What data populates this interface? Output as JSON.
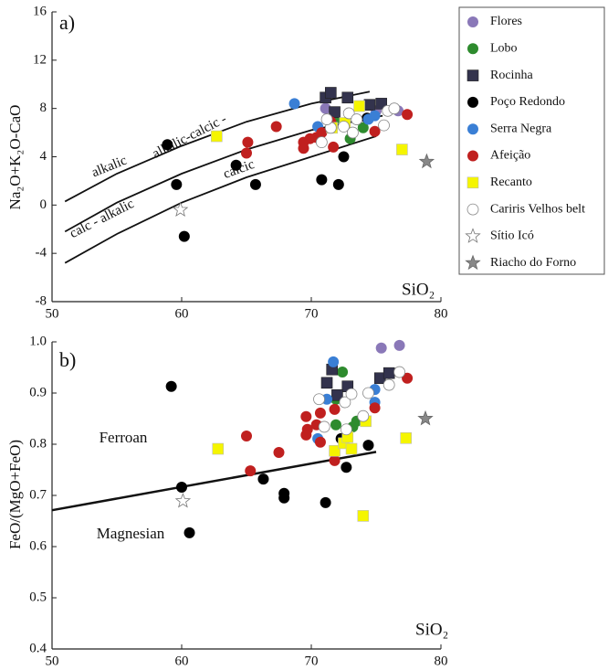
{
  "chart_data": [
    {
      "type": "scatter",
      "title": "a)",
      "xlabel": "SiO₂",
      "ylabel": "Na₂O+K₂O-CaO",
      "xlim": [
        50,
        80
      ],
      "xticks": [
        50,
        60,
        70,
        80
      ],
      "ylim": [
        -8,
        16
      ],
      "yticks": [
        -8,
        -4,
        0,
        4,
        8,
        12,
        16
      ],
      "curves": [
        {
          "x": [
            51,
            55,
            60,
            65,
            70,
            74.5
          ],
          "y": [
            0.3,
            2.6,
            4.9,
            6.9,
            8.4,
            9.4
          ]
        },
        {
          "x": [
            51,
            55,
            60,
            65,
            70,
            75.5
          ],
          "y": [
            -2.2,
            0.2,
            2.6,
            4.6,
            6.2,
            7.4
          ]
        },
        {
          "x": [
            51,
            55,
            60,
            65,
            70,
            75
          ],
          "y": [
            -4.8,
            -2.4,
            0.2,
            2.3,
            4.0,
            5.7
          ]
        }
      ],
      "annotations": [
        "alkalic",
        "alkalic-calcic -",
        "calc - alkalic",
        "calcic"
      ],
      "series": [
        {
          "name": "Flores",
          "color": "#8a78b8",
          "marker": "circle",
          "x": [
            71.1,
            75.0,
            76.7
          ],
          "y": [
            8.0,
            7.8,
            7.8
          ]
        },
        {
          "name": "Lobo",
          "color": "#2e8b2e",
          "marker": "circle",
          "x": [
            71.8,
            73.0,
            74.0,
            72.5
          ],
          "y": [
            7.1,
            5.5,
            6.4,
            6.5
          ]
        },
        {
          "name": "Rocinha",
          "color": "#33334d",
          "marker": "square",
          "x": [
            71.1,
            71.5,
            72.8,
            74.5,
            75.4,
            71.8
          ],
          "y": [
            8.9,
            9.3,
            8.9,
            8.3,
            8.4,
            7.7
          ]
        },
        {
          "name": "Poço Redondo",
          "color": "#000000",
          "marker": "circle",
          "x": [
            58.9,
            59.6,
            60.2,
            64.2,
            65.7,
            70.8,
            72.1,
            72.5,
            74.3
          ],
          "y": [
            5.0,
            1.7,
            -2.6,
            3.3,
            1.7,
            2.1,
            1.7,
            4.0,
            7.2
          ]
        },
        {
          "name": "Serra Negra",
          "color": "#3a7fd5",
          "marker": "circle",
          "x": [
            68.7,
            70.5,
            74.4,
            74.9
          ],
          "y": [
            8.4,
            6.5,
            7.1,
            7.4
          ]
        },
        {
          "name": "Afeição",
          "color": "#c0201f",
          "marker": "circle",
          "x": [
            65.0,
            65.1,
            67.3,
            69.4,
            69.4,
            69.9,
            70.4,
            71.5,
            71.7,
            74.9,
            77.4,
            70.8
          ],
          "y": [
            4.3,
            5.2,
            6.5,
            5.2,
            4.7,
            5.5,
            5.6,
            6.9,
            4.8,
            6.1,
            7.5,
            6.0
          ]
        },
        {
          "name": "Recanto",
          "color": "#f5f500",
          "marker": "square",
          "x": [
            62.7,
            71.6,
            73.7,
            77.0,
            72.6
          ],
          "y": [
            5.7,
            6.4,
            8.2,
            4.6,
            6.8
          ]
        },
        {
          "name": "Cariris Velhos belt",
          "color": "#ffffff",
          "marker": "circle",
          "x": [
            70.8,
            71.5,
            72.5,
            72.9,
            73.5,
            75.6,
            75.9,
            76.4,
            73.2,
            71.2
          ],
          "y": [
            5.2,
            6.4,
            6.5,
            7.6,
            7.1,
            6.6,
            7.8,
            8.0,
            6.0,
            7.1
          ]
        },
        {
          "name": "Sítio Icó",
          "color": "#ffffff",
          "marker": "star",
          "x": [
            59.9
          ],
          "y": [
            -0.4
          ]
        },
        {
          "name": "Riacho do Forno",
          "color": "#888888",
          "marker": "star",
          "x": [
            78.9
          ],
          "y": [
            3.6
          ]
        }
      ]
    },
    {
      "type": "scatter",
      "title": "b)",
      "xlabel": "SiO₂",
      "ylabel": "FeO/(MgO+FeO)",
      "xlim": [
        50,
        80
      ],
      "xticks": [
        50,
        60,
        70,
        80
      ],
      "ylim": [
        0.4,
        1.0
      ],
      "yticks": [
        0.4,
        0.5,
        0.6,
        0.7,
        0.8,
        0.9,
        {
          "value": 1,
          "label": "1.0"
        }
      ],
      "curves": [
        {
          "x": [
            50,
            75
          ],
          "y": [
            0.671,
            0.785
          ]
        }
      ],
      "annotations": [
        "Ferroan",
        "Magnesian"
      ],
      "series": [
        {
          "color": "#8a78b8",
          "marker": "circle",
          "x": [
            75.4,
            76.8
          ],
          "y": [
            0.988,
            0.993
          ]
        },
        {
          "color": "#2e8b2e",
          "marker": "circle",
          "x": [
            72.4,
            71.9,
            73.2,
            71.9,
            73.5
          ],
          "y": [
            0.941,
            0.888,
            0.834,
            0.838,
            0.845
          ]
        },
        {
          "color": "#33334d",
          "marker": "square",
          "x": [
            71.2,
            71.6,
            72.8,
            72.0,
            75.3,
            76.0
          ],
          "y": [
            0.92,
            0.946,
            0.913,
            0.896,
            0.929,
            0.939
          ]
        },
        {
          "color": "#000000",
          "marker": "circle",
          "x": [
            59.2,
            60.0,
            60.6,
            66.3,
            67.9,
            67.9,
            71.1,
            72.3,
            72.7,
            74.4
          ],
          "y": [
            0.913,
            0.716,
            0.627,
            0.732,
            0.704,
            0.695,
            0.686,
            0.811,
            0.755,
            0.798
          ]
        },
        {
          "color": "#3a7fd5",
          "marker": "circle",
          "x": [
            71.7,
            71.2,
            70.5,
            74.9,
            74.9
          ],
          "y": [
            0.961,
            0.888,
            0.811,
            0.907,
            0.882
          ]
        },
        {
          "color": "#c0201f",
          "marker": "circle",
          "x": [
            65.0,
            65.3,
            67.5,
            69.7,
            69.6,
            70.4,
            70.7,
            69.6,
            71.8,
            71.8,
            74.9,
            77.4,
            70.7
          ],
          "y": [
            0.816,
            0.748,
            0.784,
            0.829,
            0.854,
            0.838,
            0.861,
            0.818,
            0.868,
            0.768,
            0.871,
            0.929,
            0.804
          ]
        },
        {
          "color": "#f5f500",
          "marker": "square",
          "x": [
            62.8,
            71.8,
            72.5,
            73.1,
            72.8,
            74.2,
            74.0,
            77.3
          ],
          "y": [
            0.791,
            0.787,
            0.802,
            0.791,
            0.814,
            0.845,
            0.66,
            0.812
          ]
        },
        {
          "color": "#ffffff",
          "marker": "circle",
          "x": [
            70.6,
            72.6,
            73.1,
            74.0,
            74.4,
            76.0,
            76.8,
            71.0,
            72.7
          ],
          "y": [
            0.888,
            0.882,
            0.898,
            0.855,
            0.9,
            0.916,
            0.941,
            0.834,
            0.829
          ]
        },
        {
          "color": "#ffffff",
          "marker": "star",
          "x": [
            60.1
          ],
          "y": [
            0.689
          ]
        },
        {
          "color": "#888888",
          "marker": "star",
          "x": [
            78.8
          ],
          "y": [
            0.85
          ]
        }
      ]
    }
  ]
}
